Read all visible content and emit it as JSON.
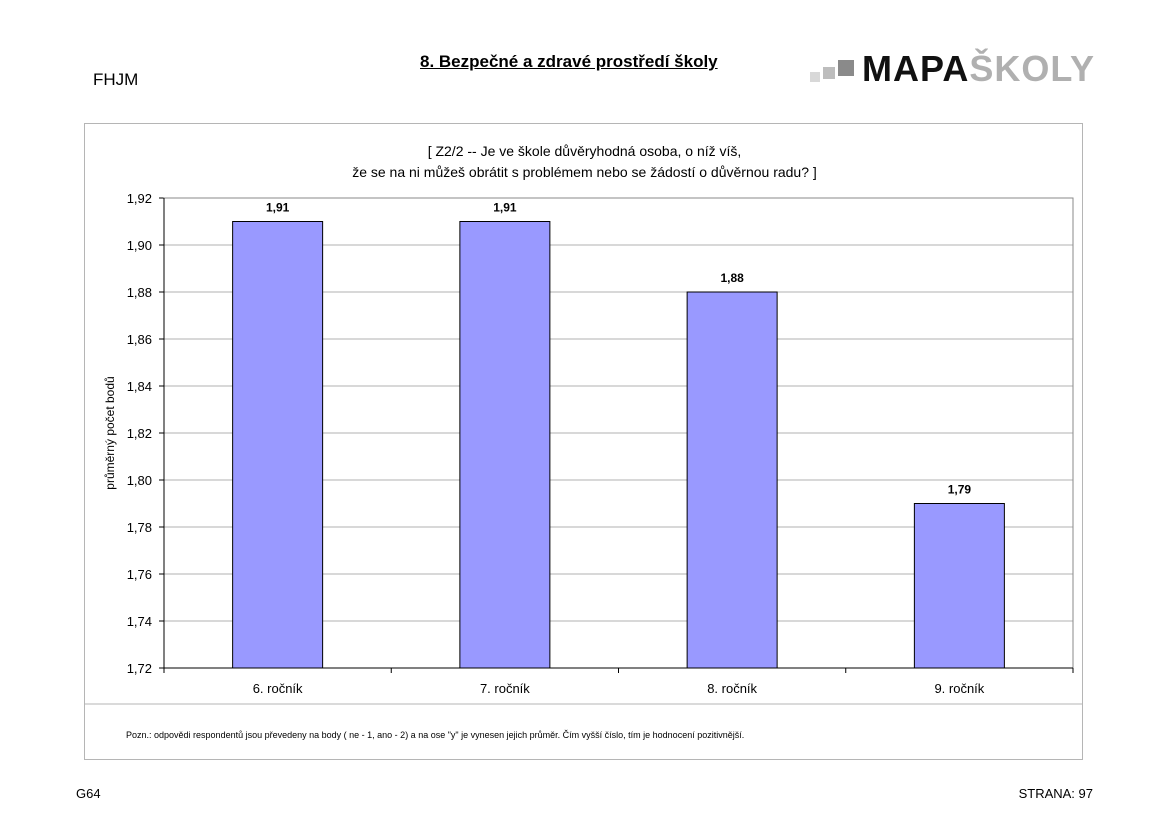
{
  "header": {
    "school_code": "FHJM",
    "page_title": "8. Bezpečné a zdravé prostředí školy",
    "logo": {
      "text_dark": "MAPA",
      "text_light": "ŠKOLY"
    }
  },
  "chart_data": {
    "type": "bar",
    "title_lines": [
      "[ Z2/2 --  Je ve škole důvěryhodná osoba, o níž víš,",
      "že se na ni můžeš obrátit s problémem nebo se žádostí o důvěrnou radu? ]"
    ],
    "categories": [
      "6. ročník",
      "7. ročník",
      "8. ročník",
      "9. ročník"
    ],
    "values": [
      1.91,
      1.91,
      1.88,
      1.79
    ],
    "value_labels": [
      "1,91",
      "1,91",
      "1,88",
      "1,79"
    ],
    "ylabel": "průměrný počet bodů",
    "ylim": [
      1.72,
      1.92
    ],
    "yticks": [
      1.72,
      1.74,
      1.76,
      1.78,
      1.8,
      1.82,
      1.84,
      1.86,
      1.88,
      1.9,
      1.92
    ],
    "ytick_labels": [
      "1,72",
      "1,74",
      "1,76",
      "1,78",
      "1,80",
      "1,82",
      "1,84",
      "1,86",
      "1,88",
      "1,90",
      "1,92"
    ],
    "grid": true,
    "legend": "none",
    "colors": {
      "bar": "#9999ff",
      "bar_border": "#000000",
      "grid": "#b0b0b0"
    }
  },
  "note": "Pozn.: odpovědi respondentů jsou převedeny na body ( ne - 1, ano - 2) a na ose \"y\" je vynesen jejich průměr. Čím vyšší číslo, tím je hodnocení pozitivnější.",
  "footer": {
    "left": "G64",
    "right": "STRANA: 97"
  }
}
